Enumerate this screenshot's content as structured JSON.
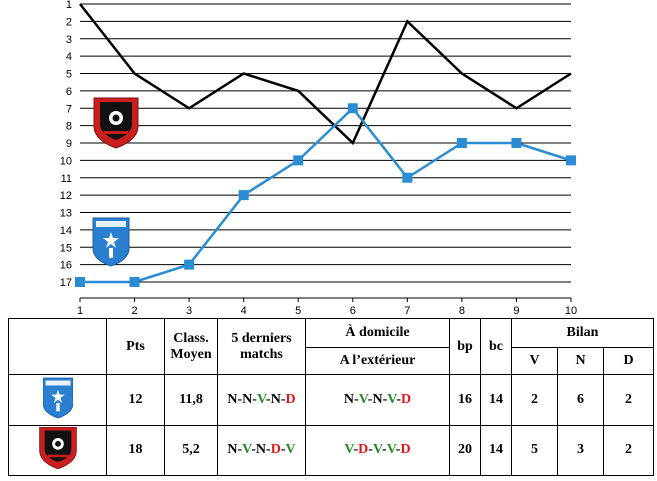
{
  "chart_data": {
    "type": "line",
    "x": [
      1,
      2,
      3,
      4,
      5,
      6,
      7,
      8,
      9,
      10
    ],
    "xlim": [
      1,
      10
    ],
    "ylim": [
      1,
      17
    ],
    "y_inverted": true,
    "y_ticks": [
      1,
      2,
      3,
      4,
      5,
      6,
      7,
      8,
      9,
      10,
      11,
      12,
      13,
      14,
      15,
      16,
      17
    ],
    "x_ticks": [
      1,
      2,
      3,
      4,
      5,
      6,
      7,
      8,
      9,
      10
    ],
    "grid": "horizontal",
    "series": [
      {
        "team": "rennes",
        "color": "#000000",
        "marker": "none",
        "values": [
          1,
          5,
          7,
          5,
          6,
          9,
          2,
          5,
          7,
          5
        ]
      },
      {
        "team": "auxerre",
        "color": "#2a8dd4",
        "marker": "square",
        "values": [
          17,
          17,
          16,
          12,
          10,
          7,
          11,
          9,
          9,
          10
        ]
      }
    ],
    "logos": {
      "rennes_colors": [
        "#cc1e1e",
        "#111111"
      ],
      "auxerre_color": "#2a7fd0"
    }
  },
  "table": {
    "headers": {
      "pts": "Pts",
      "class": "Class. Moyen",
      "last5": "5 derniers matchs",
      "home": "À domicile",
      "away": "A l’extérieur",
      "bp": "bp",
      "bc": "bc",
      "bilan": "Bilan",
      "v": "V",
      "n": "N",
      "d": "D"
    },
    "rows": [
      {
        "team": "auxerre",
        "pts": "12",
        "class": "11,8",
        "last5": [
          "N",
          "N",
          "V",
          "N",
          "D"
        ],
        "home_away": [
          "N",
          "V",
          "N",
          "V",
          "D"
        ],
        "bp": "16",
        "bc": "14",
        "v": "2",
        "n": "6",
        "d": "2"
      },
      {
        "team": "rennes",
        "pts": "18",
        "class": "5,2",
        "last5": [
          "N",
          "V",
          "N",
          "D",
          "V"
        ],
        "home_away": [
          "V",
          "D",
          "V",
          "V",
          "D"
        ],
        "bp": "20",
        "bc": "14",
        "v": "5",
        "n": "3",
        "d": "2"
      }
    ]
  }
}
